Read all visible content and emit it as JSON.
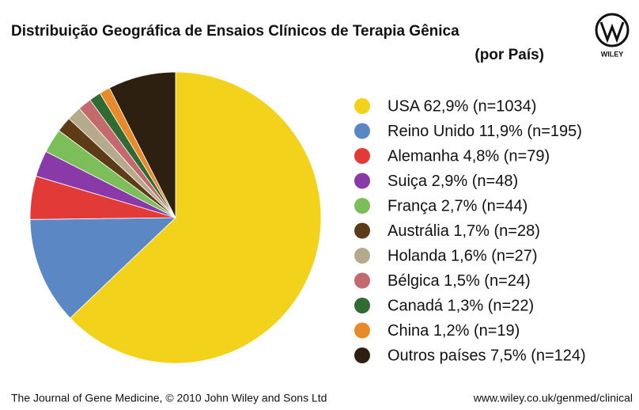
{
  "chart_data": {
    "type": "pie",
    "title": "Distribuição Geográfica de Ensaios Clínicos de Terapia Gênica",
    "subtitle": "(por País)",
    "logo": "WILEY",
    "categories": [
      "USA 62,9% (n=1034)",
      "Reino Unido 11,9% (n=195)",
      "Alemanha 4,8% (n=79)",
      "Suiça 2,9% (n=48)",
      "França 2,7% (n=44)",
      "Austrália 1,7% (n=28)",
      "Holanda 1,6% (n=27)",
      "Bélgica 1,5% (n=24)",
      "Canadá 1,3% (n=22)",
      "China 1,2% (n=19)",
      "Outros países 7,5% (n=124)"
    ],
    "values": [
      62.9,
      11.9,
      4.8,
      2.9,
      2.7,
      1.7,
      1.6,
      1.5,
      1.3,
      1.2,
      7.5
    ],
    "colors": [
      "#f2d21b",
      "#5b87c5",
      "#e23a36",
      "#8a3aa8",
      "#7cbf5a",
      "#5e3b17",
      "#b5ab8c",
      "#c46a6f",
      "#2f6b32",
      "#e8892a",
      "#2e2010"
    ],
    "source": "The Journal of Gene Medicine, © 2010 John Wiley and Sons Ltd",
    "url": "www.wiley.co.uk/genmed/clinical"
  }
}
